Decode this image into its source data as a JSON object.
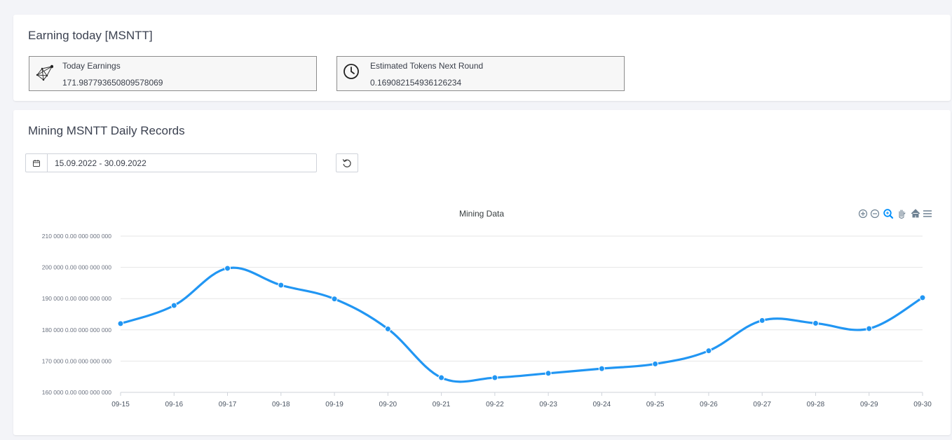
{
  "earning_card": {
    "title": "Earning today [MSNTT]",
    "today_earnings": {
      "label": "Today Earnings",
      "value": "171.987793650809578069",
      "icon": "network-icon"
    },
    "estimated_tokens": {
      "label": "Estimated Tokens Next Round",
      "value": "0.169082154936126234",
      "icon": "clock-icon"
    }
  },
  "mining_card": {
    "title": "Mining MSNTT Daily Records",
    "date_range": "15.09.2022 - 30.09.2022",
    "toolbar": [
      "zoom-in-icon",
      "zoom-out-icon",
      "zoom-select-icon",
      "pan-hand-icon",
      "home-icon",
      "menu-icon"
    ]
  },
  "colors": {
    "series": "#2196f3",
    "grid": "#e6e6e6",
    "accent": "#008ffb"
  },
  "chart_data": {
    "type": "line",
    "title": "Mining Data",
    "categories": [
      "09-15",
      "09-16",
      "09-17",
      "09-18",
      "09-19",
      "09-20",
      "09-21",
      "09-22",
      "09-23",
      "09-24",
      "09-25",
      "09-26",
      "09-27",
      "09-28",
      "09-29",
      "09-30"
    ],
    "series": [
      {
        "values": [
          182000,
          187800,
          199700,
          194300,
          189900,
          180300,
          164700,
          164700,
          166100,
          167600,
          169100,
          173300,
          183000,
          182100,
          180400,
          190300
        ]
      }
    ],
    "ylim": [
      160000,
      210000
    ],
    "yticks": [
      210000,
      200000,
      190000,
      180000,
      170000,
      160000
    ],
    "ytick_labels": [
      "210 000 0.00 000 000 000",
      "200 000 0.00 000 000 000",
      "190 000 0.00 000 000 000",
      "180 000 0.00 000 000 000",
      "170 000 0.00 000 000 000",
      "160 000 0.00 000 000 000"
    ],
    "grid": true,
    "curve": "smooth"
  }
}
